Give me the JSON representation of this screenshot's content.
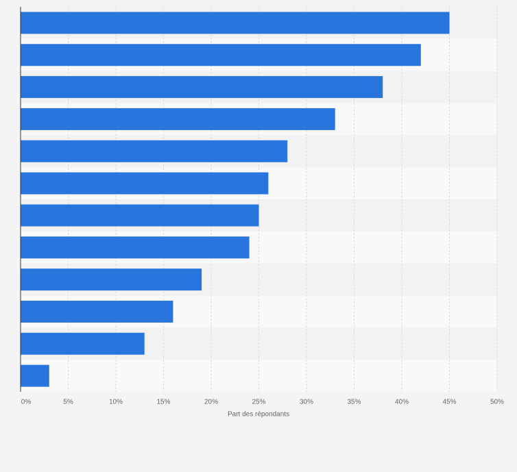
{
  "chart_data": {
    "type": "bar",
    "orientation": "horizontal",
    "xlabel": "Part des répondants",
    "categories": [
      null,
      null,
      null,
      null,
      null,
      null,
      null,
      null,
      null,
      null,
      null,
      null
    ],
    "values": [
      45,
      42,
      38,
      33,
      28,
      26,
      25,
      24,
      19,
      16,
      13,
      3
    ],
    "color": "#2876dd",
    "xlim": [
      0,
      50
    ],
    "xticks": [
      {
        "value": 0,
        "label": "0%"
      },
      {
        "value": 5,
        "label": "5%"
      },
      {
        "value": 10,
        "label": "10%"
      },
      {
        "value": 15,
        "label": "15%"
      },
      {
        "value": 20,
        "label": "20%"
      },
      {
        "value": 25,
        "label": "25%"
      },
      {
        "value": 30,
        "label": "30%"
      },
      {
        "value": 35,
        "label": "35%"
      },
      {
        "value": 40,
        "label": "40%"
      },
      {
        "value": 45,
        "label": "45%"
      },
      {
        "value": 50,
        "label": "50%"
      }
    ],
    "grid": true
  }
}
